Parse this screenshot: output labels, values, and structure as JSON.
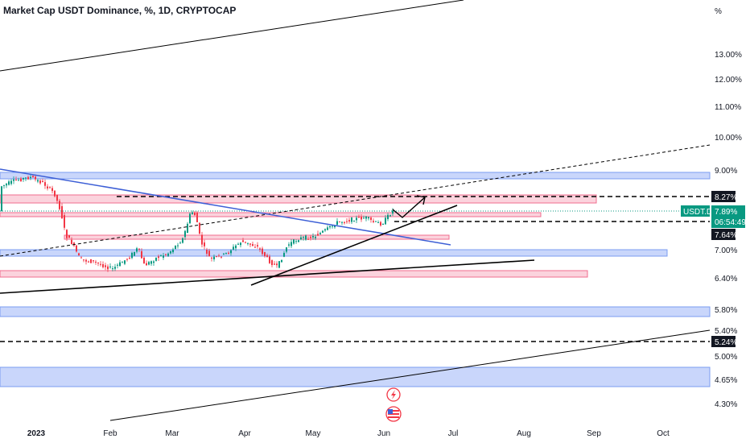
{
  "title": "Market Cap USDT Dominance, %, 1D, CRYPTOCAP",
  "chart_data": {
    "type": "candlestick",
    "title": "Market Cap USDT Dominance, %, 1D, CRYPTOCAP",
    "yunit": "%",
    "yticks": [
      "13.00%",
      "12.00%",
      "11.00%",
      "10.00%",
      "9.00%",
      "7.00%",
      "6.40%",
      "5.80%",
      "5.40%",
      "5.00%",
      "4.65%",
      "4.30%"
    ],
    "xticks": [
      {
        "label": "2023",
        "bold": true
      },
      {
        "label": "Feb",
        "bold": false
      },
      {
        "label": "Mar",
        "bold": false
      },
      {
        "label": "Apr",
        "bold": false
      },
      {
        "label": "May",
        "bold": false
      },
      {
        "label": "Jun",
        "bold": false
      },
      {
        "label": "Jul",
        "bold": false
      },
      {
        "label": "Aug",
        "bold": false
      },
      {
        "label": "Sep",
        "bold": false
      },
      {
        "label": "Oct",
        "bold": false
      }
    ],
    "price_labels": [
      {
        "name": "level-8-27",
        "text": "8.27%",
        "value": 8.27
      },
      {
        "name": "level-7-64",
        "text": "7.64%",
        "value": 7.64
      },
      {
        "name": "level-5-24",
        "text": "5.24%",
        "value": 5.24
      }
    ],
    "current": {
      "symbol": "USDT.D",
      "value": "7.89%",
      "countdown": "06:54:49",
      "color": "#089981"
    },
    "colors": {
      "up": "#089981",
      "down": "#f23645",
      "zone_blue": "#7b9cf0",
      "zone_red": "#f7a7bb",
      "trend_blue": "#3d5fd6"
    }
  },
  "indicators": {
    "flash_icon": "lightning-icon",
    "event_icon": "us-flag-icon"
  }
}
